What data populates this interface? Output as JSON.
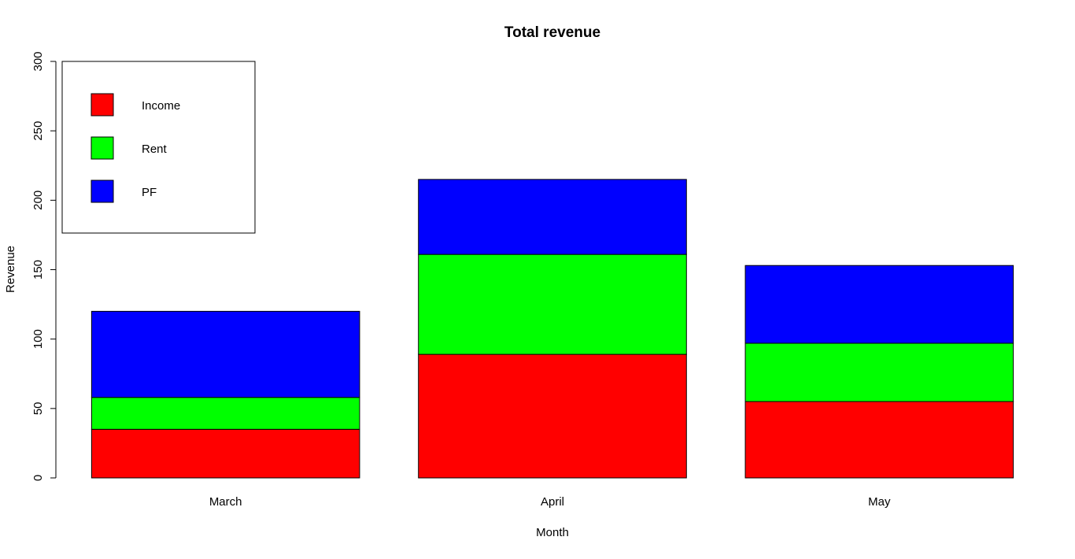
{
  "chart_data": {
    "type": "bar",
    "stacked": true,
    "title": "Total revenue",
    "xlabel": "Month",
    "ylabel": "Revenue",
    "categories": [
      "March",
      "April",
      "May"
    ],
    "series": [
      {
        "name": "Income",
        "color": "#ff0000",
        "values": [
          35,
          89,
          55
        ]
      },
      {
        "name": "Rent",
        "color": "#00ff00",
        "values": [
          23,
          72,
          42
        ]
      },
      {
        "name": "PF",
        "color": "#0000ff",
        "values": [
          62,
          54,
          56
        ]
      }
    ],
    "ylim": [
      0,
      300
    ],
    "yticks": [
      "0",
      "50",
      "100",
      "150",
      "200",
      "250",
      "300"
    ],
    "grid": false,
    "legend_position": "top-left"
  }
}
